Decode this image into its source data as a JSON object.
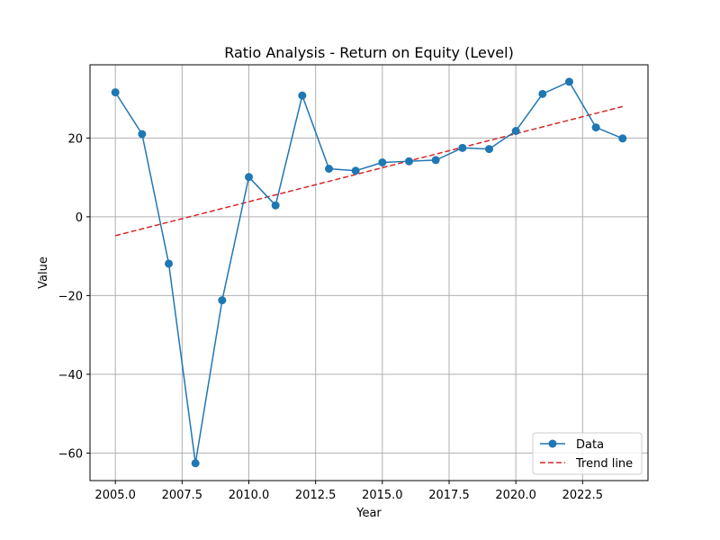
{
  "chart_data": {
    "type": "line",
    "title": "Ratio Analysis - Return on Equity (Level)",
    "xlabel": "Year",
    "ylabel": "Value",
    "xlim": [
      2004.05,
      2024.95
    ],
    "ylim": [
      -67.0,
      38.6
    ],
    "xticks": [
      2005.0,
      2007.5,
      2010.0,
      2012.5,
      2015.0,
      2017.5,
      2020.0,
      2022.5
    ],
    "xtick_labels": [
      "2005.0",
      "2007.5",
      "2010.0",
      "2012.5",
      "2015.0",
      "2017.5",
      "2020.0",
      "2022.5"
    ],
    "yticks": [
      -60,
      -40,
      -20,
      0,
      20
    ],
    "ytick_labels": [
      "−60",
      "−40",
      "−20",
      "0",
      "20"
    ],
    "grid": true,
    "legend_position": "bottom-right",
    "series": [
      {
        "name": "Data",
        "style": "solid-line-with-circle-markers",
        "color": "#1f77b4",
        "x": [
          2005,
          2006,
          2007,
          2008,
          2009,
          2010,
          2011,
          2012,
          2013,
          2014,
          2015,
          2016,
          2017,
          2018,
          2019,
          2020,
          2021,
          2022,
          2023,
          2024
        ],
        "y": [
          31.6,
          21.0,
          -11.9,
          -62.6,
          -21.2,
          10.1,
          2.9,
          30.8,
          12.2,
          11.7,
          13.8,
          14.1,
          14.4,
          17.5,
          17.2,
          21.8,
          31.2,
          34.3,
          22.7,
          19.9
        ]
      },
      {
        "name": "Trend line",
        "style": "dashed-line",
        "color": "#d62728",
        "x": [
          2005,
          2024
        ],
        "y": [
          -4.8,
          28.0
        ]
      }
    ]
  }
}
